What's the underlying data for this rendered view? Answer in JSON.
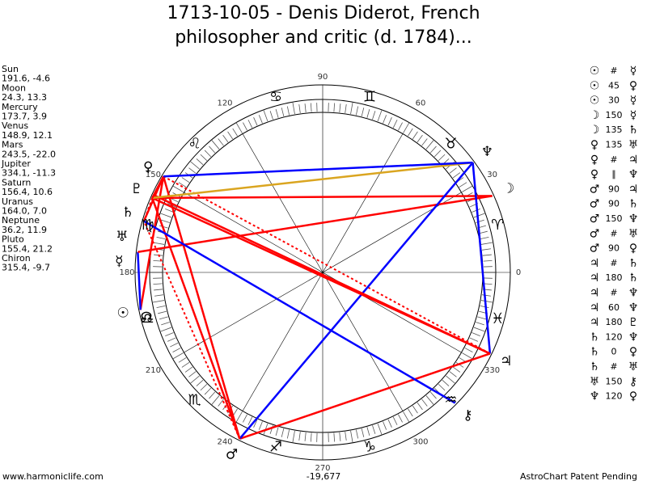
{
  "header": {
    "title_lines": [
      "1713-10-05 - Denis Diderot, French",
      "philosopher and critic (d. 1784)..."
    ]
  },
  "planets": [
    {
      "name": "Sun",
      "glyph": "☉",
      "lon": 191.6,
      "coords": "191.6, -4.6"
    },
    {
      "name": "Moon",
      "glyph": "☽",
      "lon": 24.3,
      "coords": "24.3, 13.3"
    },
    {
      "name": "Mercury",
      "glyph": "☿",
      "lon": 173.7,
      "coords": "173.7, 3.9"
    },
    {
      "name": "Venus",
      "glyph": "♀",
      "lon": 148.9,
      "coords": "148.9, 12.1"
    },
    {
      "name": "Mars",
      "glyph": "♂",
      "lon": 243.5,
      "coords": "243.5, -22.0"
    },
    {
      "name": "Jupiter",
      "glyph": "♃",
      "lon": 334.1,
      "coords": "334.1, -11.3"
    },
    {
      "name": "Saturn",
      "glyph": "♄",
      "lon": 156.4,
      "coords": "156.4, 10.6"
    },
    {
      "name": "Uranus",
      "glyph": "♅",
      "lon": 164.0,
      "coords": "164.0, 7.0"
    },
    {
      "name": "Neptune",
      "glyph": "♆",
      "lon": 36.2,
      "coords": "36.2, 11.9"
    },
    {
      "name": "Pluto",
      "glyph": "♇",
      "lon": 155.4,
      "coords": "155.4, 21.2"
    },
    {
      "name": "Chiron",
      "glyph": "⚷",
      "lon": 315.4,
      "coords": "315.4, -9.7"
    }
  ],
  "node_glyph": "☊",
  "signs": [
    "♈",
    "♉",
    "♊",
    "♋",
    "♌",
    "♍",
    "♎",
    "♏",
    "♐",
    "♑",
    "♒",
    "♓"
  ],
  "degree_labels": [
    0,
    30,
    60,
    90,
    120,
    150,
    180,
    210,
    240,
    270,
    300,
    330
  ],
  "aspects": [
    {
      "a": "☉",
      "aspect": "#",
      "b": "☿",
      "color": "#ff0000",
      "dashed": true
    },
    {
      "a": "☉",
      "aspect": "45",
      "b": "♀",
      "color": "#ff0000",
      "dashed": false
    },
    {
      "a": "☉",
      "aspect": "30",
      "b": "☿",
      "color": "#0000ff",
      "dashed": false
    },
    {
      "a": "☽",
      "aspect": "150",
      "b": "☿",
      "color": "#ff0000",
      "dashed": false
    },
    {
      "a": "☽",
      "aspect": "135",
      "b": "♄",
      "color": "#ff0000",
      "dashed": false
    },
    {
      "a": "♀",
      "aspect": "135",
      "b": "♅",
      "color": "#ff0000",
      "dashed": false
    },
    {
      "a": "♀",
      "aspect": "#",
      "b": "♃",
      "color": "#ff0000",
      "dashed": true
    },
    {
      "a": "♀",
      "aspect": "∥",
      "b": "♆",
      "color": "#daa520",
      "dashed": true
    },
    {
      "a": "♂",
      "aspect": "90",
      "b": "♃",
      "color": "#ff0000",
      "dashed": false
    },
    {
      "a": "♂",
      "aspect": "90",
      "b": "♄",
      "color": "#ff0000",
      "dashed": false
    },
    {
      "a": "♂",
      "aspect": "150",
      "b": "♆",
      "color": "#0000ff",
      "dashed": false
    },
    {
      "a": "♂",
      "aspect": "#",
      "b": "♅",
      "color": "#ff0000",
      "dashed": true
    },
    {
      "a": "♂",
      "aspect": "90",
      "b": "♀",
      "color": "#ff0000",
      "dashed": false
    },
    {
      "a": "♃",
      "aspect": "#",
      "b": "♄",
      "color": "#ff0000",
      "dashed": true
    },
    {
      "a": "♃",
      "aspect": "180",
      "b": "♄",
      "color": "#ff0000",
      "dashed": false
    },
    {
      "a": "♃",
      "aspect": "#",
      "b": "♆",
      "color": "#ff0000",
      "dashed": true
    },
    {
      "a": "♃",
      "aspect": "60",
      "b": "♆",
      "color": "#0000ff",
      "dashed": false
    },
    {
      "a": "♃",
      "aspect": "180",
      "b": "♇",
      "color": "#ff0000",
      "dashed": false
    },
    {
      "a": "♄",
      "aspect": "120",
      "b": "♆",
      "color": "#daa520",
      "dashed": false
    },
    {
      "a": "♄",
      "aspect": "0",
      "b": "♀",
      "color": "#ff0000",
      "dashed": false
    },
    {
      "a": "♄",
      "aspect": "#",
      "b": "♅",
      "color": "#ff0000",
      "dashed": true
    },
    {
      "a": "♅",
      "aspect": "150",
      "b": "⚷",
      "color": "#0000ff",
      "dashed": false
    },
    {
      "a": "♆",
      "aspect": "120",
      "b": "♀",
      "color": "#0000ff",
      "dashed": false
    }
  ],
  "footer": {
    "left": "www.harmoniclife.com",
    "center": "-19,677",
    "right": "AstroChart Patent Pending"
  }
}
